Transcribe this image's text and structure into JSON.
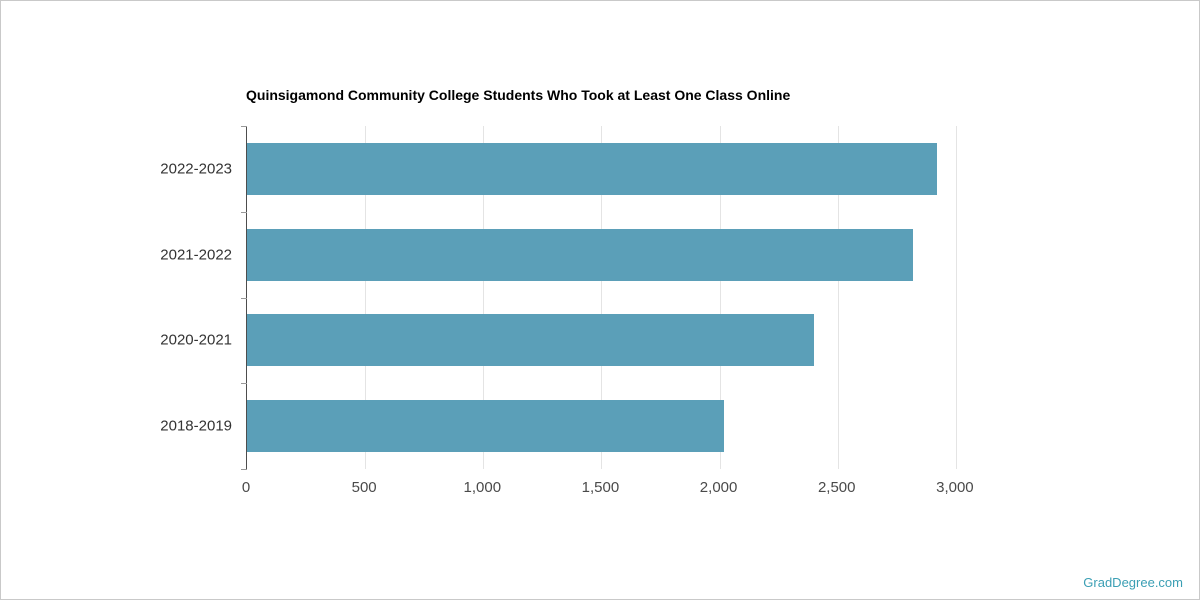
{
  "page": {
    "watermark": "GradDegree.com",
    "watermark_color": "#3b9fb4"
  },
  "chart_data": {
    "type": "bar",
    "orientation": "horizontal",
    "title": "Quinsigamond Community College Students Who Took at Least One Class Online",
    "categories": [
      "2022-2023",
      "2021-2022",
      "2020-2021",
      "2018-2019"
    ],
    "values": [
      2920,
      2820,
      2400,
      2020
    ],
    "x_ticks": [
      0,
      500,
      1000,
      1500,
      2000,
      2500,
      3000
    ],
    "x_tick_labels": [
      "0",
      "500",
      "1,000",
      "1,500",
      "2,000",
      "2,500",
      "3,000"
    ],
    "xlim": [
      0,
      3830
    ],
    "bar_color": "#5b9fb8",
    "grid": true,
    "gridline_color": "#e4e4e4",
    "legend": "none"
  }
}
